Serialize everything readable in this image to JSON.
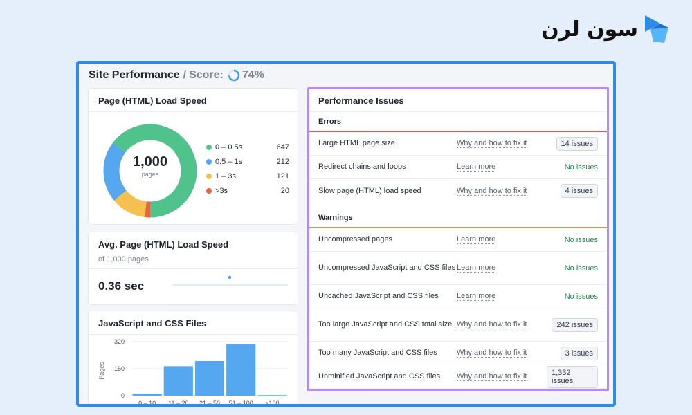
{
  "brand": {
    "name": "سون لرن"
  },
  "header": {
    "title": "Site Performance",
    "separator": "/",
    "score_label": "Score:",
    "score_value": "74%",
    "score_fraction": 0.74
  },
  "load_speed": {
    "title": "Page (HTML) Load Speed",
    "total": "1,000",
    "total_unit": "pages",
    "legend": [
      {
        "label": "0 – 0.5s",
        "value": "647",
        "color": "#4fc38b"
      },
      {
        "label": "0.5 – 1s",
        "value": "212",
        "color": "#55a8f0"
      },
      {
        "label": "1 – 3s",
        "value": "121",
        "color": "#f4c04f"
      },
      {
        "label": ">3s",
        "value": "20",
        "color": "#e8643c"
      }
    ]
  },
  "avg_speed": {
    "title": "Avg. Page (HTML) Load Speed",
    "subtitle": "of 1,000 pages",
    "value": "0.36 sec"
  },
  "js_css": {
    "title": "JavaScript and CSS Files",
    "chart_data": {
      "type": "bar",
      "categories": [
        "0 – 10",
        "11 – 20",
        "21 – 50",
        "51 – 100",
        ">100"
      ],
      "values": [
        12,
        175,
        205,
        305,
        3
      ],
      "ylabel": "Pages",
      "yticks": [
        "320",
        "160",
        "0"
      ],
      "ylim": [
        0,
        320
      ],
      "grid": true
    }
  },
  "issues": {
    "title": "Performance Issues",
    "errors_label": "Errors",
    "warnings_label": "Warnings",
    "errors": [
      {
        "name": "Large HTML page size",
        "link": "Why and how to fix it",
        "status": "14 issues",
        "has_issues": true
      },
      {
        "name": "Redirect chains and loops",
        "link": "Learn more",
        "status": "No issues",
        "has_issues": false
      },
      {
        "name": "Slow page (HTML) load speed",
        "link": "Why and how to fix it",
        "status": "4 issues",
        "has_issues": true
      }
    ],
    "warnings": [
      {
        "name": "Uncompressed pages",
        "link": "Learn more",
        "status": "No issues",
        "has_issues": false
      },
      {
        "name": "Uncompressed JavaScript and CSS files",
        "link": "Learn more",
        "status": "No issues",
        "has_issues": false
      },
      {
        "name": "Uncached JavaScript and CSS files",
        "link": "Learn more",
        "status": "No issues",
        "has_issues": false
      },
      {
        "name": "Too large JavaScript and CSS total size",
        "link": "Why and how to fix it",
        "status": "242 issues",
        "has_issues": true
      },
      {
        "name": "Too many JavaScript and CSS files",
        "link": "Why and how to fix it",
        "status": "3 issues",
        "has_issues": true
      },
      {
        "name": "Unminified JavaScript and CSS files",
        "link": "Why and how to fix it",
        "status": "1,332 issues",
        "has_issues": true
      }
    ]
  }
}
